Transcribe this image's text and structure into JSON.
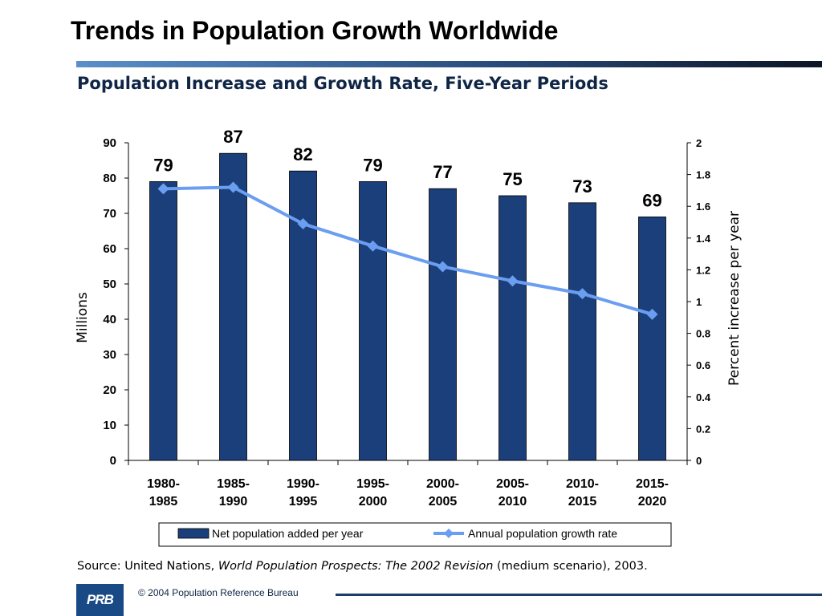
{
  "slide": {
    "title": "Trends in Population Growth Worldwide",
    "footer_logo": "PRB",
    "copyright": "© 2004 Population Reference Bureau",
    "source": {
      "prefix": "Source: United Nations, ",
      "italic": "World Population Prospects: The 2002 Revision",
      "suffix": " (medium scenario), 2003."
    }
  },
  "chart_data": {
    "type": "bar",
    "title": "Population Increase and Growth Rate, Five-Year Periods",
    "categories": [
      [
        "1980-",
        "1985"
      ],
      [
        "1985-",
        "1990"
      ],
      [
        "1990-",
        "1995"
      ],
      [
        "1995-",
        "2000"
      ],
      [
        "2000-",
        "2005"
      ],
      [
        "2005-",
        "2010"
      ],
      [
        "2010-",
        "2015"
      ],
      [
        "2015-",
        "2020"
      ]
    ],
    "ylabel": "Millions",
    "ylim": [
      0,
      90
    ],
    "yticks": [
      0,
      10,
      20,
      30,
      40,
      50,
      60,
      70,
      80,
      90
    ],
    "y2label": "Percent increase per year",
    "y2lim": [
      0,
      2
    ],
    "y2ticks": [
      "0",
      "0.2",
      "0.4",
      "0.6",
      "0.8",
      "1",
      "1.2",
      "1.4",
      "1.6",
      "1.8",
      "2"
    ],
    "series": [
      {
        "name": "Net population added per year",
        "kind": "bar",
        "axis": "left",
        "color": "#1b3f7a",
        "values": [
          79,
          87,
          82,
          79,
          77,
          75,
          73,
          69
        ],
        "labels": [
          "79",
          "87",
          "82",
          "79",
          "77",
          "75",
          "73",
          "69"
        ]
      },
      {
        "name": "Annual population growth rate",
        "kind": "line",
        "axis": "right",
        "color": "#6b9ef0",
        "values": [
          1.71,
          1.72,
          1.49,
          1.35,
          1.22,
          1.13,
          1.05,
          0.92
        ]
      }
    ],
    "grid": false,
    "legend": "bottom"
  }
}
